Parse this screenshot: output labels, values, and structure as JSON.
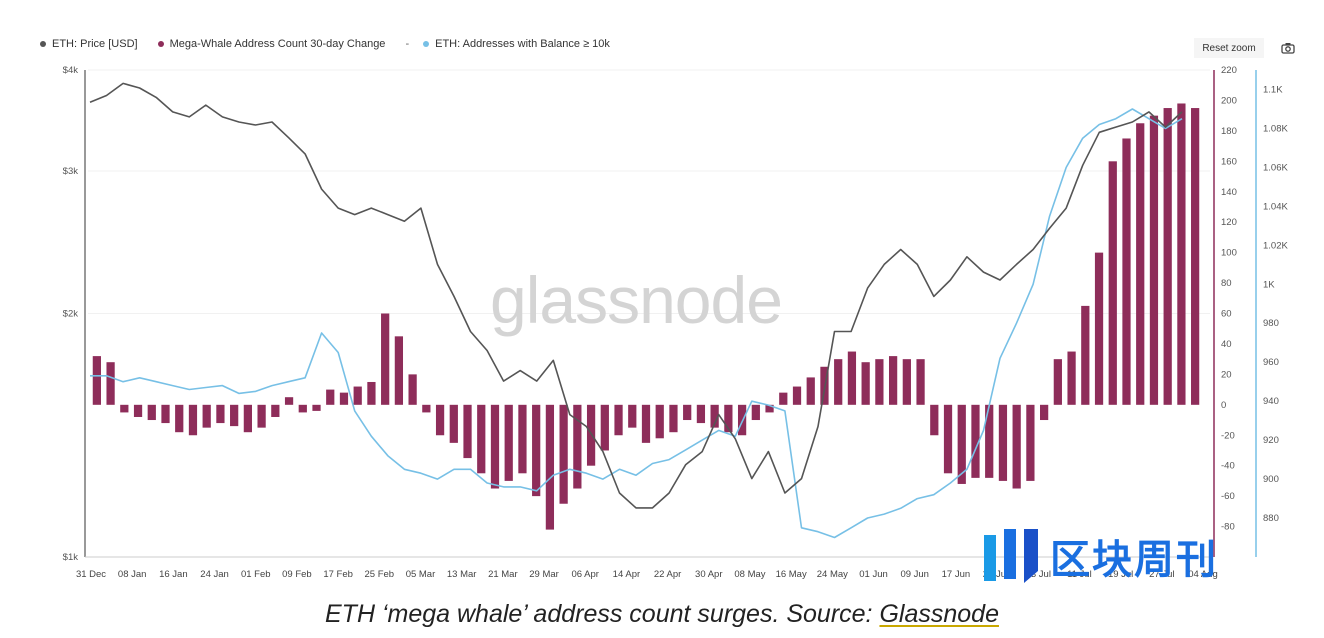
{
  "legend": {
    "price": "ETH: Price [USD]",
    "mega_whale": "Mega-Whale Address Count 30-day Change",
    "dash": "-",
    "addresses": "ETH: Addresses with Balance ≥ 10k"
  },
  "controls": {
    "reset_zoom": "Reset zoom"
  },
  "watermark": "glassnode",
  "brand": {
    "text": "区块周刊",
    "logo": "bar-logo-icon"
  },
  "caption": {
    "text": "ETH ‘mega whale’ address count surges. Source: ",
    "link": "Glassnode"
  },
  "colors": {
    "price": "#555555",
    "bars": "#8e2d5a",
    "addresses": "#77c0e6",
    "right_axis_bar": "#8e2d5a",
    "right_axis_addr": "#77c0e6"
  },
  "chart_data": {
    "type": "bar",
    "x_ticks": [
      "31 Dec",
      "08 Jan",
      "16 Jan",
      "24 Jan",
      "01 Feb",
      "09 Feb",
      "17 Feb",
      "25 Feb",
      "05 Mar",
      "13 Mar",
      "21 Mar",
      "29 Mar",
      "06 Apr",
      "14 Apr",
      "22 Apr",
      "30 Apr",
      "08 May",
      "16 May",
      "24 May",
      "01 Jun",
      "09 Jun",
      "17 Jun",
      "25 Jun",
      "03 Jul",
      "11 Jul",
      "19 Jul",
      "27 Jul",
      "04 Aug"
    ],
    "y_left": {
      "ticks": [
        "$1k",
        "$2k",
        "$3k",
        "$4k"
      ],
      "values": [
        1000,
        2000,
        3000,
        4000
      ],
      "scale": "log"
    },
    "y_mid": {
      "ticks": [
        -80,
        -60,
        -40,
        -20,
        0,
        20,
        40,
        60,
        80,
        100,
        120,
        140,
        160,
        180,
        200,
        220
      ],
      "range": [
        -100,
        220
      ]
    },
    "y_right": {
      "ticks": [
        "880",
        "900",
        "920",
        "940",
        "960",
        "980",
        "1K",
        "1.02K",
        "1.04K",
        "1.06K",
        "1.08K",
        "1.1K"
      ],
      "range": [
        860,
        1110
      ]
    },
    "series": [
      {
        "name": "ETH: Price [USD]",
        "type": "line",
        "axis": "left",
        "values": [
          3650,
          3720,
          3850,
          3800,
          3700,
          3550,
          3500,
          3620,
          3500,
          3450,
          3420,
          3450,
          3300,
          3150,
          2850,
          2700,
          2650,
          2700,
          2650,
          2600,
          2700,
          2300,
          2100,
          1900,
          1800,
          1650,
          1700,
          1650,
          1750,
          1500,
          1450,
          1350,
          1200,
          1150,
          1150,
          1200,
          1300,
          1350,
          1500,
          1400,
          1250,
          1350,
          1200,
          1250,
          1450,
          1900,
          1900,
          2150,
          2300,
          2400,
          2300,
          2100,
          2200,
          2350,
          2250,
          2200,
          2300,
          2400,
          2550,
          2700,
          3050,
          3350,
          3400,
          3450,
          3550,
          3400,
          3550
        ]
      },
      {
        "name": "ETH: Addresses with Balance ≥ 10k",
        "type": "line",
        "axis": "right",
        "values": [
          953,
          953,
          950,
          952,
          950,
          948,
          946,
          947,
          948,
          944,
          945,
          948,
          950,
          952,
          975,
          965,
          935,
          922,
          912,
          905,
          903,
          900,
          905,
          905,
          898,
          896,
          896,
          894,
          902,
          905,
          903,
          900,
          905,
          902,
          908,
          910,
          915,
          920,
          925,
          922,
          940,
          938,
          935,
          875,
          873,
          870,
          875,
          880,
          882,
          885,
          890,
          892,
          898,
          905,
          925,
          962,
          980,
          1000,
          1035,
          1060,
          1075,
          1082,
          1085,
          1090,
          1085,
          1080,
          1085
        ]
      },
      {
        "name": "Mega-Whale Address Count 30-day Change",
        "type": "bar",
        "axis": "mid",
        "values": [
          32,
          28,
          -5,
          -8,
          -10,
          -12,
          -18,
          -20,
          -15,
          -12,
          -14,
          -18,
          -15,
          -8,
          5,
          -5,
          -4,
          10,
          8,
          12,
          15,
          60,
          45,
          20,
          -5,
          -20,
          -25,
          -35,
          -45,
          -55,
          -50,
          -45,
          -60,
          -82,
          -65,
          -55,
          -40,
          -30,
          -20,
          -15,
          -25,
          -22,
          -18,
          -10,
          -12,
          -15,
          -18,
          -20,
          -10,
          -5,
          8,
          12,
          18,
          25,
          30,
          35,
          28,
          30,
          32,
          30,
          30,
          -20,
          -45,
          -52,
          -48,
          -48,
          -50,
          -55,
          -50,
          -10,
          30,
          35,
          65,
          100,
          160,
          175,
          185,
          190,
          195,
          198,
          195
        ]
      }
    ]
  }
}
